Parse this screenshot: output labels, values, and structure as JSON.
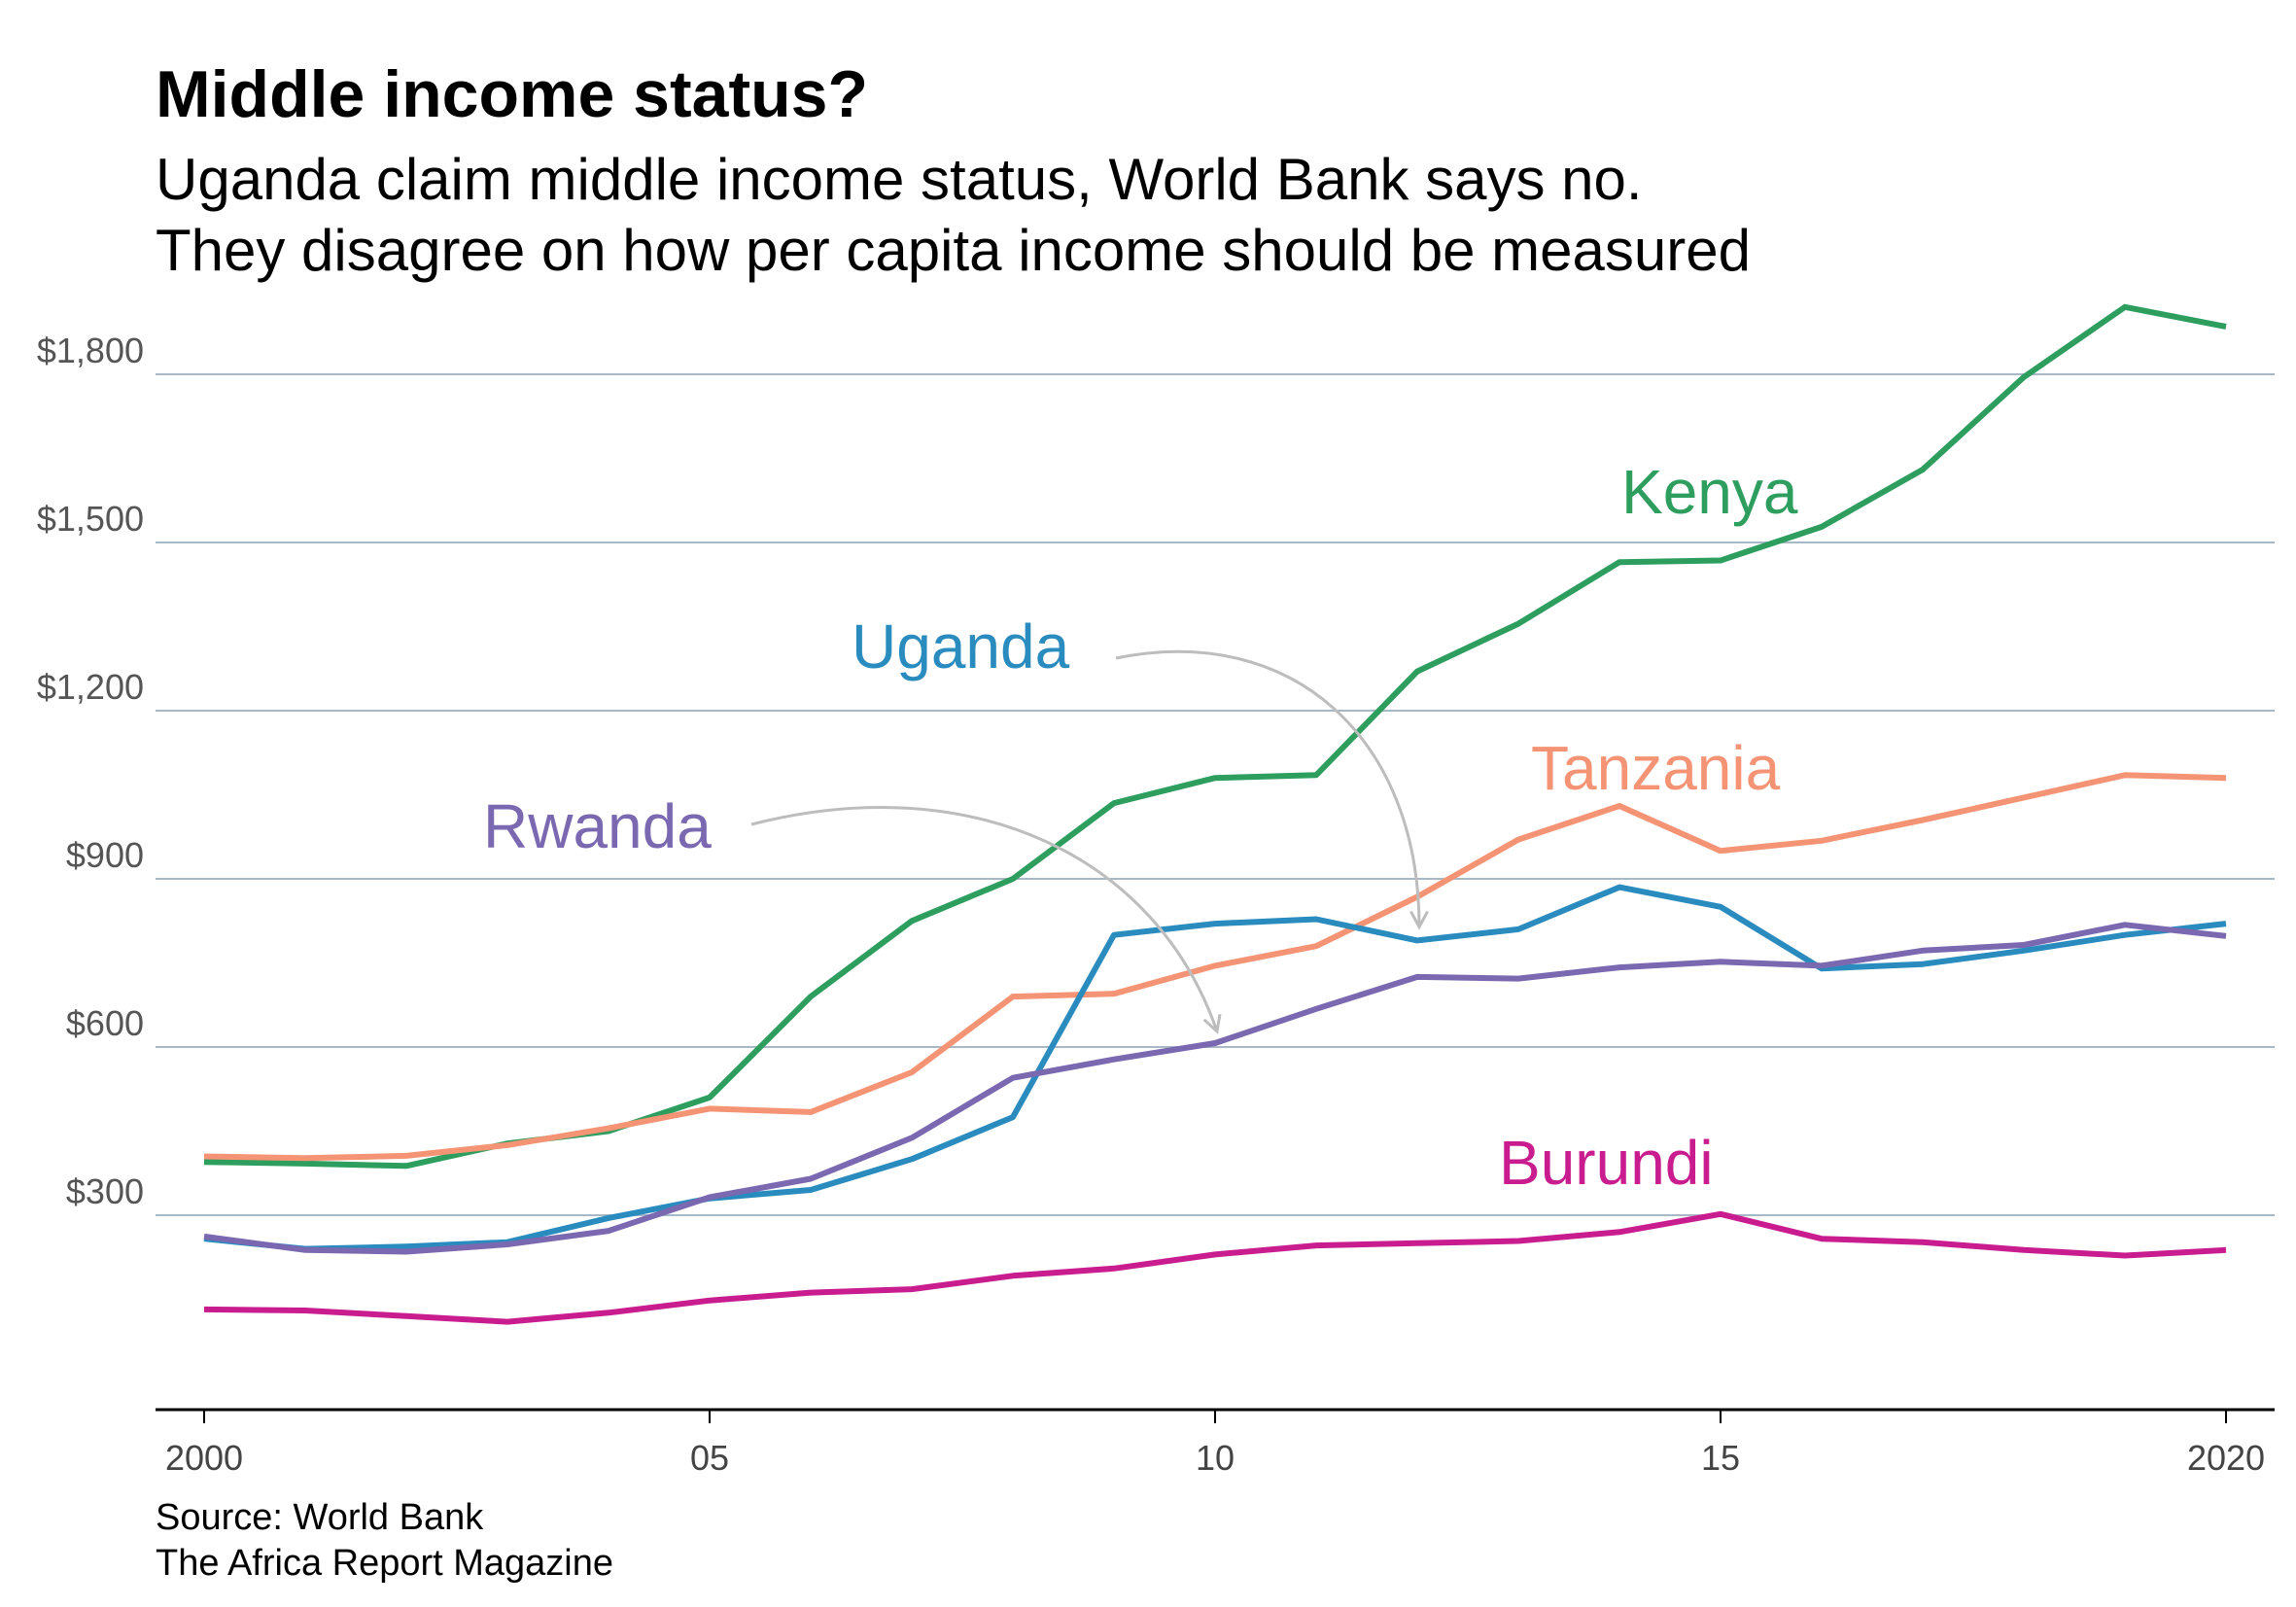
{
  "chart_data": {
    "type": "line",
    "title": "Middle income status?",
    "subtitle": [
      "Uganda claim middle income status, World Bank says no.",
      "They disagree on how per capita income should be measured"
    ],
    "xlabel": "",
    "ylabel": "",
    "x": [
      2000,
      2001,
      2002,
      2003,
      2004,
      2005,
      2006,
      2007,
      2008,
      2009,
      2010,
      2011,
      2012,
      2013,
      2014,
      2015,
      2016,
      2017,
      2018,
      2019,
      2020
    ],
    "xlim": [
      1999.5,
      2020.5
    ],
    "ylim": [
      -350,
      1900
    ],
    "x_ticks": [
      {
        "value": 2000,
        "label": "2000"
      },
      {
        "value": 2005,
        "label": "05"
      },
      {
        "value": 2010,
        "label": "10"
      },
      {
        "value": 2015,
        "label": "15"
      },
      {
        "value": 2020,
        "label": "2020"
      }
    ],
    "y_ticks": [
      {
        "value": 300,
        "label": "$300"
      },
      {
        "value": 600,
        "label": "$600"
      },
      {
        "value": 900,
        "label": "$900"
      },
      {
        "value": 1200,
        "label": "$1,200"
      },
      {
        "value": 1500,
        "label": "$1,500"
      },
      {
        "value": 1800,
        "label": "$1,800"
      }
    ],
    "grid": true,
    "legend": "direct labels",
    "series": [
      {
        "name": "Kenya",
        "color": "#2e9e5f",
        "values": [
          395,
          392,
          388,
          428,
          450,
          510,
          690,
          825,
          900,
          1035,
          1080,
          1085,
          1270,
          1355,
          1465,
          1468,
          1528,
          1630,
          1795,
          1920,
          1885
        ]
      },
      {
        "name": "Tanzania",
        "color": "#f59474",
        "values": [
          405,
          402,
          406,
          425,
          455,
          490,
          484,
          555,
          690,
          695,
          745,
          780,
          868,
          970,
          1030,
          950,
          968,
          1005,
          1045,
          1085,
          1080
        ]
      },
      {
        "name": "Uganda",
        "color": "#2a8bbf",
        "values": [
          258,
          240,
          244,
          252,
          295,
          330,
          345,
          400,
          475,
          800,
          820,
          828,
          790,
          810,
          885,
          850,
          740,
          748,
          772,
          800,
          820
        ]
      },
      {
        "name": "Rwanda",
        "color": "#7a68b0",
        "values": [
          262,
          238,
          235,
          248,
          272,
          332,
          365,
          438,
          545,
          578,
          607,
          668,
          725,
          722,
          742,
          752,
          745,
          772,
          782,
          818,
          798
        ]
      },
      {
        "name": "Burundi",
        "color": "#c91d8f",
        "values": [
          132,
          130,
          120,
          110,
          126,
          148,
          162,
          168,
          192,
          205,
          230,
          246,
          250,
          254,
          270,
          302,
          258,
          252,
          238,
          228,
          238
        ]
      }
    ],
    "annotations": [
      {
        "series": "Kenya",
        "text": "Kenya"
      },
      {
        "series": "Uganda",
        "text": "Uganda",
        "arrow_to": {
          "x": 2012,
          "y": 790
        }
      },
      {
        "series": "Tanzania",
        "text": "Tanzania"
      },
      {
        "series": "Rwanda",
        "text": "Rwanda",
        "arrow_to": {
          "x": 2010,
          "y": 607
        }
      },
      {
        "series": "Burundi",
        "text": "Burundi"
      }
    ],
    "source": [
      "Source: World Bank",
      "The Africa Report Magazine"
    ]
  }
}
